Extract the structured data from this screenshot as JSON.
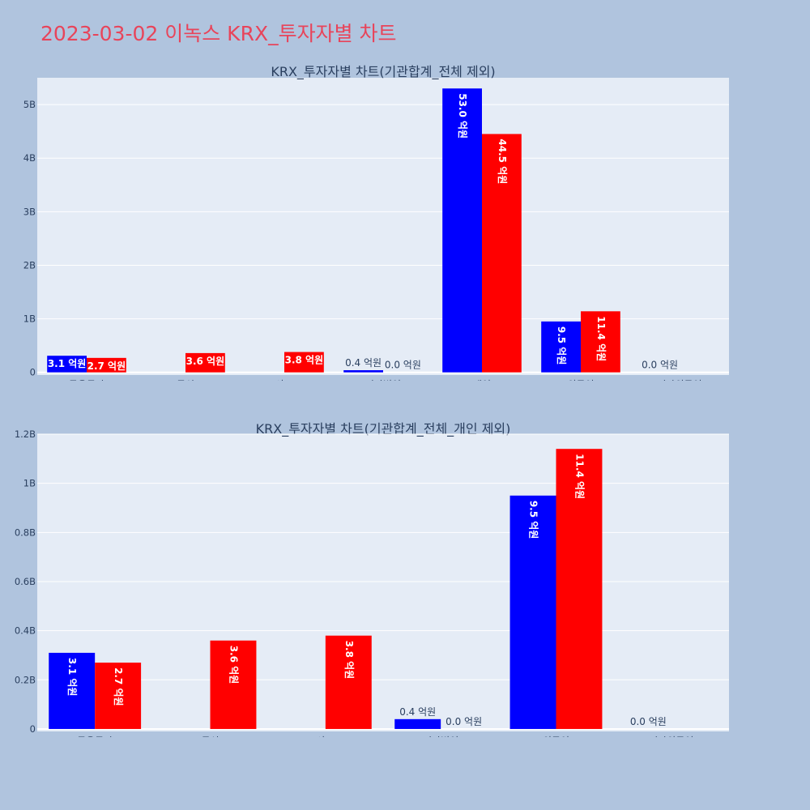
{
  "page": {
    "title": "2023-03-02 이녹스 KRX_투자자별 차트"
  },
  "colors": {
    "buy": "#0000ff",
    "sell": "#ff0000",
    "plot_bg": "#e5ecf6",
    "page_bg": "#b0c4de",
    "title": "#e8445a"
  },
  "chart_data": [
    {
      "type": "bar",
      "title": "KRX_투자자별 차트(기관합계_전체 제외)",
      "categories": [
        "금융투자",
        "투신",
        "사모",
        "기타법인",
        "개인",
        "외국인",
        "기타외국인"
      ],
      "series": [
        {
          "values": [
            0.31,
            0,
            0,
            0.04,
            5.3,
            0.95,
            0
          ],
          "labels": [
            "3.1 억원",
            "",
            "",
            "0.4 억원",
            "53.0 억원",
            "9.5 억원",
            "0.0 억원"
          ]
        },
        {
          "values": [
            0.27,
            0.36,
            0.38,
            0.0,
            4.45,
            1.14,
            null
          ],
          "labels": [
            "2.7 억원",
            "3.6 억원",
            "3.8 억원",
            "0.0 억원",
            "44.5 억원",
            "11.4 억원",
            ""
          ]
        }
      ],
      "ylim": [
        -0.05,
        5.5
      ],
      "yticks": [
        0,
        1,
        2,
        3,
        4,
        5
      ],
      "ytick_labels": [
        "0",
        "1B",
        "2B",
        "3B",
        "4B",
        "5B"
      ],
      "xlabel": "",
      "ylabel": "",
      "grid": true
    },
    {
      "type": "bar",
      "title": "KRX_투자자별 차트(기관합계_전체_개인 제외)",
      "categories": [
        "금융투자",
        "투신",
        "사모",
        "기타법인",
        "외국인",
        "기타외국인"
      ],
      "series": [
        {
          "values": [
            0.31,
            0,
            0,
            0.04,
            0.95,
            0
          ],
          "labels": [
            "3.1 억원",
            "",
            "",
            "0.4 억원",
            "9.5 억원",
            "0.0 억원"
          ]
        },
        {
          "values": [
            0.27,
            0.36,
            0.38,
            0.0,
            1.14,
            null
          ],
          "labels": [
            "2.7 억원",
            "3.6 억원",
            "3.8 억원",
            "0.0 억원",
            "11.4 억원",
            ""
          ]
        }
      ],
      "ylim": [
        -0.01,
        1.2
      ],
      "yticks": [
        0,
        0.2,
        0.4,
        0.6,
        0.8,
        1.0,
        1.2
      ],
      "ytick_labels": [
        "0",
        "0.2B",
        "0.4B",
        "0.6B",
        "0.8B",
        "1B",
        "1.2B"
      ],
      "xlabel": "",
      "ylabel": "",
      "grid": true
    }
  ]
}
